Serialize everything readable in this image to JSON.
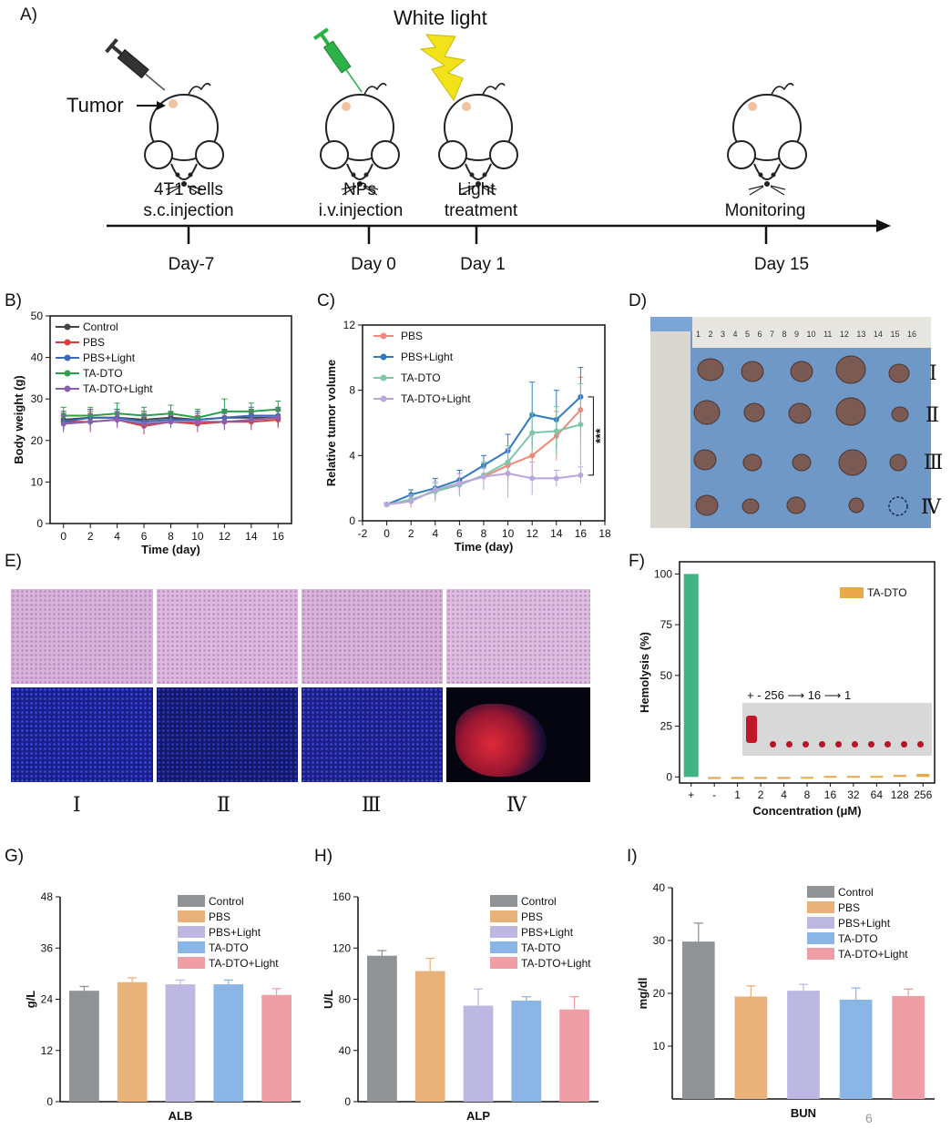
{
  "panels": {
    "A": "A)",
    "B": "B)",
    "C": "C)",
    "D": "D)",
    "E": "E)",
    "F": "F)",
    "G": "G)",
    "H": "H)",
    "I": "I)"
  },
  "schematic": {
    "tumor_label": "Tumor",
    "light_label": "White light",
    "steps": [
      {
        "line1": "4T1 cells",
        "line2": "s.c.injection",
        "day": "Day-7"
      },
      {
        "line1": "NPs",
        "line2": "i.v.injection",
        "day": "Day 0"
      },
      {
        "line1": "Light",
        "line2": "treatment",
        "day": "Day 1"
      },
      {
        "line1": "Monitoring",
        "line2": "",
        "day": "Day 15"
      }
    ],
    "colors": {
      "syringe1": "#333333",
      "syringe2": "#2db24a",
      "bolt": "#f2e21a",
      "tumor": "#f0c2a0"
    }
  },
  "photo_D": {
    "ruler": "1 2 3 4 5 6 7 8 9 10 11 12 13 14 15 16",
    "groups": [
      "Ⅰ",
      "Ⅱ",
      "Ⅲ",
      "Ⅳ"
    ]
  },
  "panel_E": {
    "groups": [
      "Ⅰ",
      "Ⅱ",
      "Ⅲ",
      "Ⅳ"
    ]
  },
  "page_number": "6",
  "chart_data": [
    {
      "id": "B",
      "type": "line",
      "xlabel": "Time (day)",
      "ylabel": "Body weight (g)",
      "xlim": [
        -1,
        17
      ],
      "ylim": [
        0,
        50
      ],
      "xticks": [
        0,
        2,
        4,
        6,
        8,
        10,
        12,
        14,
        16
      ],
      "yticks": [
        0,
        10,
        20,
        30,
        40,
        50
      ],
      "legend": "top-left",
      "x": [
        0,
        2,
        4,
        6,
        8,
        10,
        12,
        14,
        16
      ],
      "series": [
        {
          "name": "Control",
          "color": "#444444",
          "values": [
            25,
            25.5,
            25.5,
            25,
            25.5,
            25,
            25.5,
            25.5,
            25.5
          ],
          "err": [
            2,
            2,
            2,
            2,
            1.5,
            2,
            2,
            2,
            2
          ]
        },
        {
          "name": "PBS",
          "color": "#e03a3a",
          "values": [
            24.5,
            24.5,
            25,
            23.5,
            24.5,
            24,
            24.5,
            24.5,
            25
          ],
          "err": [
            2,
            2.5,
            1.5,
            2,
            1.5,
            2,
            2,
            2,
            2
          ]
        },
        {
          "name": "PBS+Light",
          "color": "#3a68b8",
          "values": [
            24.5,
            25.5,
            25.5,
            24.5,
            25,
            25,
            25.5,
            26,
            26
          ],
          "err": [
            2,
            2,
            2,
            2,
            1.5,
            2,
            2,
            2,
            2
          ]
        },
        {
          "name": "TA-DTO",
          "color": "#2aa04a",
          "values": [
            26,
            26,
            26.5,
            26,
            26.5,
            25.5,
            27,
            27,
            27.5
          ],
          "err": [
            2,
            2,
            2.5,
            2,
            2,
            2,
            3,
            2,
            2
          ]
        },
        {
          "name": "TA-DTO+Light",
          "color": "#8a5fb0",
          "values": [
            24,
            24.5,
            25,
            24,
            24.5,
            24.5,
            24.5,
            25,
            25.5
          ],
          "err": [
            2,
            2,
            2,
            2,
            1.5,
            2,
            2,
            2,
            2
          ]
        }
      ]
    },
    {
      "id": "C",
      "type": "line",
      "xlabel": "Time (day)",
      "ylabel": "Relative tumor volume",
      "xlim": [
        -2,
        18
      ],
      "ylim": [
        0,
        12
      ],
      "xticks": [
        -2,
        0,
        2,
        4,
        6,
        8,
        10,
        12,
        14,
        16,
        18
      ],
      "yticks": [
        0,
        4,
        8,
        12
      ],
      "legend": "top-left",
      "annotation": "***",
      "x": [
        0,
        2,
        4,
        6,
        8,
        10,
        12,
        14,
        16
      ],
      "series": [
        {
          "name": "PBS",
          "color": "#ee8a7a",
          "values": [
            1,
            1.2,
            1.9,
            2.3,
            2.7,
            3.4,
            4.0,
            5.2,
            6.8
          ],
          "err": [
            0.1,
            0.4,
            0.7,
            0.8,
            0.8,
            1,
            1.3,
            1.5,
            2
          ]
        },
        {
          "name": "PBS+Light",
          "color": "#2f7ac0",
          "values": [
            1,
            1.6,
            2.0,
            2.5,
            3.4,
            4.3,
            6.5,
            6.2,
            7.6
          ],
          "err": [
            0.1,
            0.3,
            0.6,
            0.6,
            0.6,
            1,
            2,
            1.8,
            1.8
          ]
        },
        {
          "name": "TA-DTO",
          "color": "#7ac8a8",
          "values": [
            1,
            1.3,
            1.8,
            2.2,
            2.8,
            3.6,
            5.4,
            5.5,
            5.9
          ],
          "err": [
            0.1,
            0.3,
            0.5,
            0.7,
            0.8,
            1,
            1.2,
            1.5,
            2.5
          ]
        },
        {
          "name": "TA-DTO+Light",
          "color": "#b9a6dc",
          "values": [
            1,
            1.2,
            1.9,
            2.3,
            2.7,
            2.9,
            2.6,
            2.6,
            2.8
          ],
          "err": [
            0.1,
            0.3,
            0.5,
            0.6,
            0.5,
            1.5,
            1,
            0.5,
            0.5
          ]
        }
      ]
    },
    {
      "id": "F",
      "type": "bar",
      "xlabel": "Concentration (μM)",
      "ylabel": "Hemolysis (%)",
      "ylim": [
        -3,
        106
      ],
      "yticks": [
        0,
        25,
        50,
        75,
        100
      ],
      "categories": [
        "+",
        "-",
        "1",
        "2",
        "4",
        "8",
        "16",
        "32",
        "64",
        "128",
        "256"
      ],
      "values": [
        100,
        -1,
        -1,
        -1,
        -1,
        -0.5,
        0.5,
        0.5,
        0.5,
        1,
        1.5
      ],
      "colors": [
        "#3fb383",
        "#e8a94a",
        "#e8a94a",
        "#e8a94a",
        "#e8a94a",
        "#e8a94a",
        "#e8a94a",
        "#e8a94a",
        "#e8a94a",
        "#e8a94a",
        "#e8a94a"
      ],
      "legend": [
        {
          "name": "TA-DTO",
          "color": "#e8a94a"
        }
      ],
      "inset_label": "+  -  256 ⟶ 16 ⟶ 1"
    },
    {
      "id": "G",
      "type": "bar",
      "xlabel": "ALB",
      "ylabel": "g/L",
      "ylim": [
        0,
        48
      ],
      "yticks": [
        0,
        12,
        24,
        36,
        48
      ],
      "categories": [
        "Control",
        "PBS",
        "PBS+Light",
        "TA-DTO",
        "TA-DTO+Light"
      ],
      "values": [
        26,
        28,
        27.5,
        27.5,
        25
      ],
      "err": [
        1,
        1,
        1,
        1,
        1.5
      ]
    },
    {
      "id": "H",
      "type": "bar",
      "xlabel": "ALP",
      "ylabel": "U/L",
      "ylim": [
        0,
        160
      ],
      "yticks": [
        0,
        40,
        80,
        120,
        160
      ],
      "categories": [
        "Control",
        "PBS",
        "PBS+Light",
        "TA-DTO",
        "TA-DTO+Light"
      ],
      "values": [
        114,
        102,
        75,
        79,
        72
      ],
      "err": [
        4,
        10,
        13,
        3,
        10
      ]
    },
    {
      "id": "I",
      "type": "bar",
      "xlabel": "BUN",
      "ylabel": "mg/dl",
      "ylim": [
        0,
        40
      ],
      "yticks": [
        10,
        20,
        30,
        40
      ],
      "categories": [
        "Control",
        "PBS",
        "PBS+Light",
        "TA-DTO",
        "TA-DTO+Light"
      ],
      "values": [
        29.8,
        19.4,
        20.5,
        18.8,
        19.5
      ],
      "err": [
        3.5,
        2,
        1.2,
        2.2,
        1.3
      ]
    }
  ],
  "bar_colors": [
    "#909396",
    "#e9b27a",
    "#bcb8e2",
    "#8ab6e6",
    "#ef9ea6"
  ]
}
